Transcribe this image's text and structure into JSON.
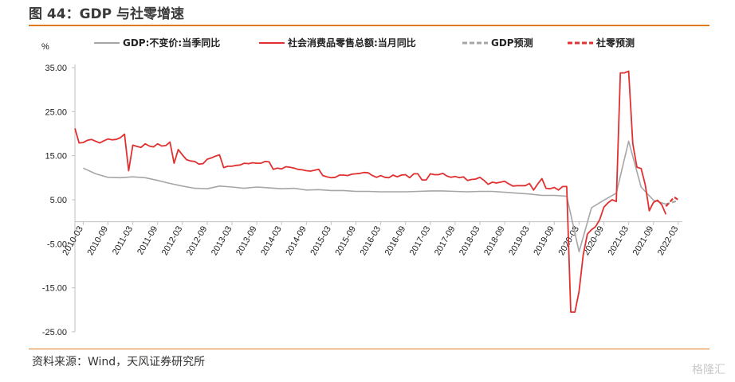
{
  "header": {
    "title": "图 44：GDP 与社零增速"
  },
  "footer": {
    "source": "资料来源：Wind，天风证券研究所",
    "watermark": "格隆汇"
  },
  "colors": {
    "accent": "#e07a1f",
    "gdp": "#a6a6a6",
    "retail": "#e03030"
  },
  "chart_data": {
    "type": "line",
    "title": "图 44：GDP 与社零增速",
    "ylabel": "%",
    "xlabel": "",
    "ylim": [
      -25,
      35
    ],
    "yticks": [
      "35.00",
      "25.00",
      "15.00",
      "5.00",
      "-5.00",
      "-15.00",
      "-25.00"
    ],
    "xticks": [
      "2010-03",
      "2010-09",
      "2011-03",
      "2011-09",
      "2012-03",
      "2012-09",
      "2013-03",
      "2013-09",
      "2014-03",
      "2014-09",
      "2015-03",
      "2015-09",
      "2016-03",
      "2016-09",
      "2017-03",
      "2017-09",
      "2018-03",
      "2018-09",
      "2019-03",
      "2019-09",
      "2020-03",
      "2020-09",
      "2021-03",
      "2021-09",
      "2022-03"
    ],
    "legend_position": "top",
    "series": [
      {
        "name": "GDP:不变价:当季同比",
        "style": "solid",
        "color": "#a6a6a6",
        "x": [
          "2010-03",
          "2010-06",
          "2010-09",
          "2010-12",
          "2011-03",
          "2011-06",
          "2011-09",
          "2011-12",
          "2012-03",
          "2012-06",
          "2012-09",
          "2012-12",
          "2013-03",
          "2013-06",
          "2013-09",
          "2013-12",
          "2014-03",
          "2014-06",
          "2014-09",
          "2014-12",
          "2015-03",
          "2015-06",
          "2015-09",
          "2015-12",
          "2016-03",
          "2016-06",
          "2016-09",
          "2016-12",
          "2017-03",
          "2017-06",
          "2017-09",
          "2017-12",
          "2018-03",
          "2018-06",
          "2018-09",
          "2018-12",
          "2019-03",
          "2019-06",
          "2019-09",
          "2019-12",
          "2020-03",
          "2020-06",
          "2020-09",
          "2020-12",
          "2021-03",
          "2021-06",
          "2021-09",
          "2021-12"
        ],
        "values": [
          12.2,
          10.9,
          10.1,
          10.0,
          10.2,
          10.0,
          9.4,
          8.7,
          8.1,
          7.6,
          7.5,
          8.1,
          7.9,
          7.6,
          7.9,
          7.7,
          7.5,
          7.6,
          7.2,
          7.3,
          7.1,
          7.1,
          6.9,
          6.9,
          6.8,
          6.8,
          6.8,
          6.9,
          7.0,
          7.0,
          6.9,
          6.8,
          6.9,
          6.9,
          6.7,
          6.5,
          6.3,
          6.0,
          6.0,
          5.8,
          -6.8,
          3.2,
          4.9,
          6.5,
          18.3,
          7.9,
          4.9,
          4.0
        ]
      },
      {
        "name": "社会消费品零售总额:当月同比",
        "style": "solid",
        "color": "#e03030",
        "x": [
          "2010-01",
          "2010-02",
          "2010-03",
          "2010-04",
          "2010-05",
          "2010-06",
          "2010-07",
          "2010-08",
          "2010-09",
          "2010-10",
          "2010-11",
          "2010-12",
          "2011-01",
          "2011-02",
          "2011-03",
          "2011-04",
          "2011-05",
          "2011-06",
          "2011-07",
          "2011-08",
          "2011-09",
          "2011-10",
          "2011-11",
          "2011-12",
          "2012-01",
          "2012-02",
          "2012-03",
          "2012-04",
          "2012-05",
          "2012-06",
          "2012-07",
          "2012-08",
          "2012-09",
          "2012-10",
          "2012-11",
          "2012-12",
          "2013-01",
          "2013-02",
          "2013-03",
          "2013-04",
          "2013-05",
          "2013-06",
          "2013-07",
          "2013-08",
          "2013-09",
          "2013-10",
          "2013-11",
          "2013-12",
          "2014-01",
          "2014-02",
          "2014-03",
          "2014-04",
          "2014-05",
          "2014-06",
          "2014-07",
          "2014-08",
          "2014-09",
          "2014-10",
          "2014-11",
          "2014-12",
          "2015-01",
          "2015-02",
          "2015-03",
          "2015-04",
          "2015-05",
          "2015-06",
          "2015-07",
          "2015-08",
          "2015-09",
          "2015-10",
          "2015-11",
          "2015-12",
          "2016-01",
          "2016-02",
          "2016-03",
          "2016-04",
          "2016-05",
          "2016-06",
          "2016-07",
          "2016-08",
          "2016-09",
          "2016-10",
          "2016-11",
          "2016-12",
          "2017-01",
          "2017-02",
          "2017-03",
          "2017-04",
          "2017-05",
          "2017-06",
          "2017-07",
          "2017-08",
          "2017-09",
          "2017-10",
          "2017-11",
          "2017-12",
          "2018-01",
          "2018-02",
          "2018-03",
          "2018-04",
          "2018-05",
          "2018-06",
          "2018-07",
          "2018-08",
          "2018-09",
          "2018-10",
          "2018-11",
          "2018-12",
          "2019-01",
          "2019-02",
          "2019-03",
          "2019-04",
          "2019-05",
          "2019-06",
          "2019-07",
          "2019-08",
          "2019-09",
          "2019-10",
          "2019-11",
          "2019-12",
          "2020-01",
          "2020-02",
          "2020-03",
          "2020-04",
          "2020-05",
          "2020-06",
          "2020-07",
          "2020-08",
          "2020-09",
          "2020-10",
          "2020-11",
          "2020-12",
          "2021-01",
          "2021-02",
          "2021-03",
          "2021-04",
          "2021-05",
          "2021-06",
          "2021-07",
          "2021-08",
          "2021-09",
          "2021-10",
          "2021-11",
          "2021-12"
        ],
        "values": [
          21.2,
          17.9,
          18.0,
          18.5,
          18.7,
          18.3,
          17.9,
          18.4,
          18.8,
          18.6,
          18.7,
          19.1,
          19.9,
          11.6,
          17.4,
          17.1,
          16.9,
          17.7,
          17.2,
          17.0,
          17.7,
          17.2,
          17.3,
          18.1,
          13.3,
          16.4,
          15.2,
          14.1,
          13.8,
          13.7,
          13.1,
          13.2,
          14.2,
          14.5,
          14.9,
          15.2,
          12.3,
          12.6,
          12.6,
          12.8,
          12.9,
          13.3,
          13.2,
          13.4,
          13.3,
          13.3,
          13.7,
          13.6,
          11.9,
          12.2,
          12.0,
          12.5,
          12.4,
          12.2,
          11.9,
          11.8,
          11.6,
          11.5,
          11.7,
          11.9,
          10.5,
          10.2,
          10.0,
          10.1,
          10.6,
          10.6,
          10.5,
          10.8,
          10.9,
          11.0,
          11.2,
          11.1,
          10.5,
          10.1,
          10.5,
          10.1,
          10.0,
          10.6,
          10.2,
          10.6,
          10.7,
          10.0,
          10.9,
          10.9,
          9.5,
          9.5,
          10.9,
          10.7,
          10.7,
          11.0,
          10.4,
          10.1,
          10.3,
          10.0,
          10.2,
          9.4,
          9.6,
          9.7,
          10.1,
          9.4,
          8.5,
          9.0,
          8.8,
          9.0,
          9.2,
          8.6,
          8.1,
          8.2,
          8.2,
          8.2,
          8.7,
          7.2,
          8.6,
          9.8,
          7.6,
          7.5,
          7.8,
          7.2,
          8.0,
          8.0,
          -20.5,
          -20.5,
          -15.8,
          -7.5,
          -2.8,
          -1.8,
          -1.1,
          0.5,
          3.3,
          4.3,
          5.0,
          4.6,
          33.8,
          33.8,
          34.2,
          17.7,
          12.4,
          12.1,
          8.5,
          2.5,
          4.4,
          4.9,
          3.9,
          1.7
        ]
      },
      {
        "name": "GDP预测",
        "style": "dashed",
        "color": "#a6a6a6",
        "x": [
          "2021-12",
          "2022-03"
        ],
        "values": [
          4.0,
          4.8
        ]
      },
      {
        "name": "社零预测",
        "style": "dashed",
        "color": "#e03030",
        "x": [
          "2021-12",
          "2022-01",
          "2022-02",
          "2022-03"
        ],
        "values": [
          3.5,
          4.5,
          5.6,
          5.0
        ]
      }
    ]
  }
}
